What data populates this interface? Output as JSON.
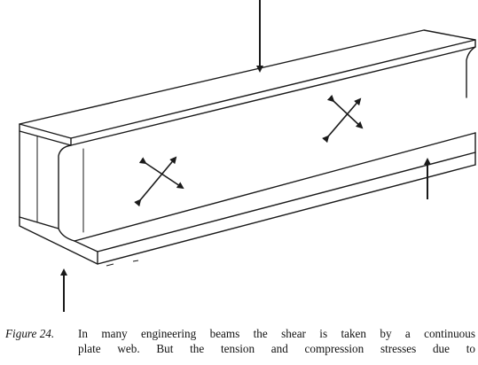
{
  "figure": {
    "subject": "I-beam with applied loads and diagonal stress arrows",
    "colors": {
      "ink": "#1a1a1a",
      "paper": "#ffffff"
    },
    "icons": [
      "down-arrow-icon",
      "up-arrow-icon",
      "stress-cross-icon"
    ]
  },
  "caption": {
    "label": "Figure 24.",
    "line1": "In many engineering beams the shear is taken by a continuous",
    "line2": "plate web. But the tension and compression stresses due to"
  }
}
